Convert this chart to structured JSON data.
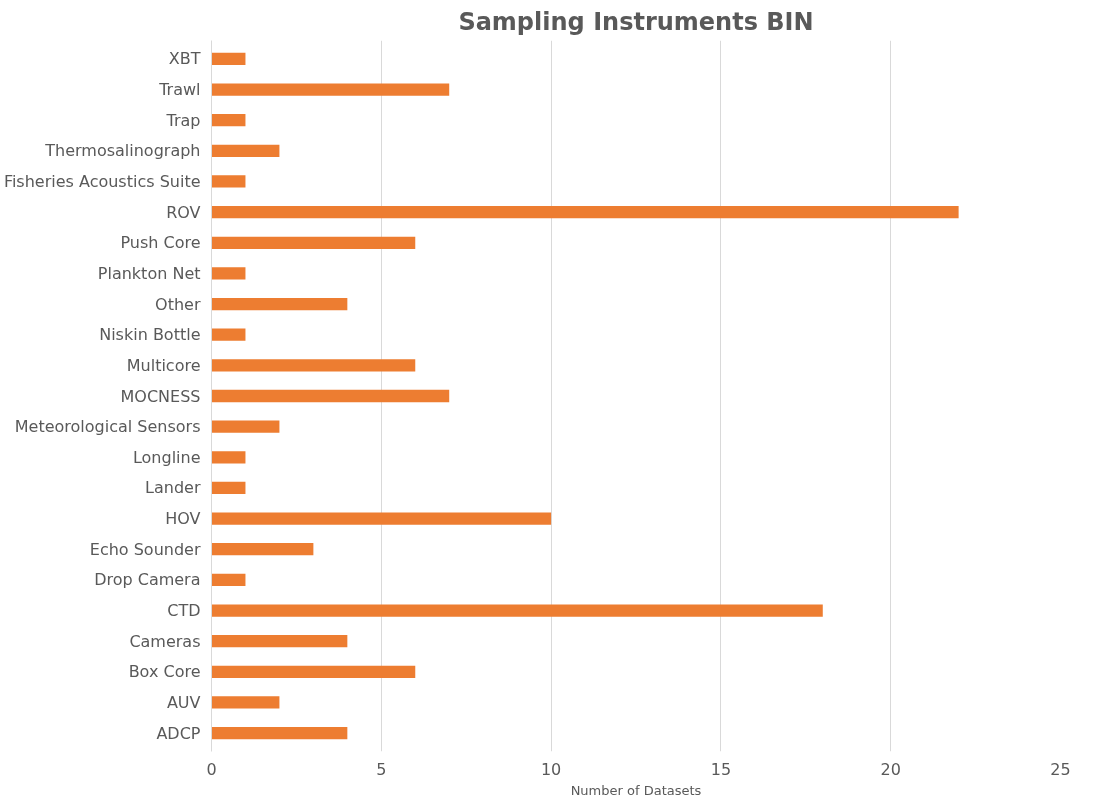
{
  "chart_data": {
    "type": "bar",
    "orientation": "horizontal",
    "title": "Sampling Instruments BIN",
    "xlabel": "Number of Datasets",
    "categories": [
      "XBT",
      "Trawl",
      "Trap",
      "Thermosalinograph",
      "Fisheries Acoustics Suite",
      "ROV",
      "Push Core",
      "Plankton Net",
      "Other",
      "Niskin Bottle",
      "Multicore",
      "MOCNESS",
      "Meteorological Sensors",
      "Longline",
      "Lander",
      "HOV",
      "Echo Sounder",
      "Drop Camera",
      "CTD",
      "Cameras",
      "Box Core",
      "AUV",
      "ADCP"
    ],
    "values": [
      1,
      7,
      1,
      2,
      1,
      22,
      6,
      1,
      4,
      1,
      6,
      7,
      2,
      1,
      1,
      10,
      3,
      1,
      18,
      4,
      6,
      2,
      4
    ],
    "color": "#ed7d31",
    "xlim": [
      0,
      25
    ],
    "xticks": [
      0,
      5,
      10,
      15,
      20,
      25
    ],
    "grid": "x"
  }
}
